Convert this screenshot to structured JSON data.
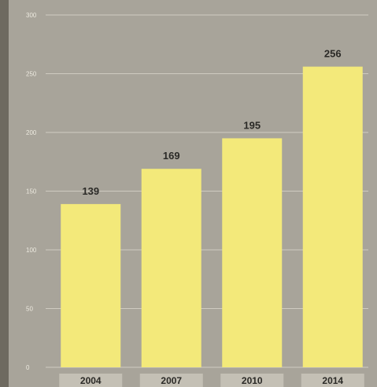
{
  "chart_data": {
    "type": "bar",
    "categories": [
      "2004",
      "2007",
      "2010",
      "2014"
    ],
    "values": [
      139,
      169,
      195,
      256
    ],
    "title": "",
    "xlabel": "",
    "ylabel": "",
    "ylim": [
      0,
      300
    ],
    "yticks": [
      0,
      50,
      100,
      150,
      200,
      250,
      300
    ],
    "grid": true,
    "legend": "none",
    "colors": {
      "background": "#a8a49a",
      "bar": "#f3e97a",
      "grid": "#cfcbc1",
      "label_text": "#2b2a27"
    }
  }
}
